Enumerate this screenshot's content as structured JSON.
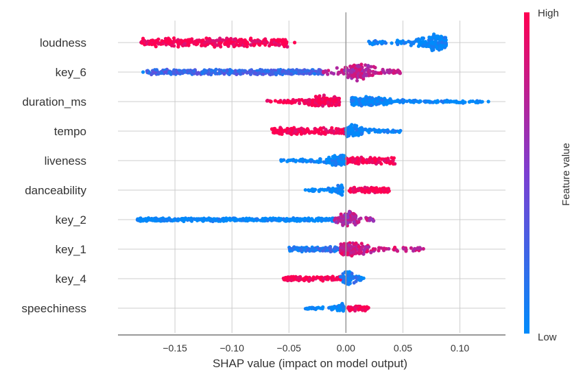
{
  "chart_data": {
    "type": "scatter",
    "subtype": "shap-beeswarm",
    "title": "",
    "xlabel": "SHAP value (impact on model output)",
    "ylabel": "",
    "xlim": [
      -0.2,
      0.14
    ],
    "xticks": [
      -0.15,
      -0.1,
      -0.05,
      0.0,
      0.05,
      0.1
    ],
    "xtick_labels": [
      "−0.15",
      "−0.10",
      "−0.05",
      "0.00",
      "0.05",
      "0.10"
    ],
    "grid": {
      "vertical": true,
      "horizontal": true
    },
    "zero_line": 0.0,
    "colorbar": {
      "title": "Feature value",
      "high_label": "High",
      "low_label": "Low",
      "high_color": "#ff0051",
      "mid_color": "#7c3fd1",
      "low_color": "#008bfb"
    },
    "features": [
      {
        "name": "loudness",
        "segments": [
          {
            "x0": -0.18,
            "x1": -0.05,
            "c": 1.0,
            "w": 0.9
          },
          {
            "x0": 0.02,
            "x1": 0.088,
            "c": 0.0,
            "w": 1.0,
            "peak": 0.08
          }
        ],
        "outliers": [
          {
            "x": -0.045,
            "c": 1.0
          }
        ]
      },
      {
        "name": "key_6",
        "segments": [
          {
            "x0": -0.175,
            "x1": -0.02,
            "c": 0.25,
            "w": 0.55
          },
          {
            "x0": -0.02,
            "x1": 0.05,
            "c": 0.75,
            "w": 1.0,
            "peak": 0.01
          }
        ],
        "outliers": [
          {
            "x": -0.178,
            "c": 0.0
          }
        ]
      },
      {
        "name": "duration_ms",
        "segments": [
          {
            "x0": -0.07,
            "x1": -0.005,
            "c": 1.0,
            "w": 0.75,
            "peak": -0.02
          },
          {
            "x0": 0.005,
            "x1": 0.12,
            "c": 0.0,
            "w": 0.6,
            "peak": 0.015
          }
        ],
        "outliers": [
          {
            "x": 0.125,
            "c": 0.0
          }
        ]
      },
      {
        "name": "tempo",
        "segments": [
          {
            "x0": -0.065,
            "x1": 0.0,
            "c": 1.0,
            "w": 0.7
          },
          {
            "x0": 0.0,
            "x1": 0.048,
            "c": 0.0,
            "w": 0.75,
            "peak": 0.005
          }
        ],
        "outliers": []
      },
      {
        "name": "liveness",
        "segments": [
          {
            "x0": -0.057,
            "x1": 0.0,
            "c": 0.0,
            "w": 0.7,
            "peak": -0.005
          },
          {
            "x0": 0.0,
            "x1": 0.043,
            "c": 1.0,
            "w": 0.7
          }
        ],
        "outliers": []
      },
      {
        "name": "danceability",
        "segments": [
          {
            "x0": -0.037,
            "x1": -0.003,
            "c": 0.0,
            "w": 0.65,
            "peak": -0.003
          },
          {
            "x0": 0.003,
            "x1": 0.038,
            "c": 1.0,
            "w": 0.6
          }
        ],
        "outliers": []
      },
      {
        "name": "key_2",
        "segments": [
          {
            "x0": -0.183,
            "x1": -0.01,
            "c": 0.0,
            "w": 0.35
          },
          {
            "x0": -0.01,
            "x1": 0.025,
            "c": 0.7,
            "w": 1.0,
            "peak": 0.003
          }
        ],
        "outliers": []
      },
      {
        "name": "key_1",
        "segments": [
          {
            "x0": -0.05,
            "x1": 0.0,
            "c": 0.15,
            "w": 0.5
          },
          {
            "x0": -0.005,
            "x1": 0.068,
            "c": 0.8,
            "w": 0.95,
            "peak": 0.003
          }
        ],
        "outliers": []
      },
      {
        "name": "key_4",
        "segments": [
          {
            "x0": -0.055,
            "x1": 0.0,
            "c": 1.0,
            "w": 0.5
          },
          {
            "x0": -0.005,
            "x1": 0.016,
            "c": 0.1,
            "w": 1.0,
            "peak": 0.002
          }
        ],
        "outliers": []
      },
      {
        "name": "speechiness",
        "segments": [
          {
            "x0": -0.039,
            "x1": -0.002,
            "c": 0.0,
            "w": 0.55,
            "peak": -0.002
          },
          {
            "x0": 0.002,
            "x1": 0.02,
            "c": 1.0,
            "w": 0.55
          }
        ],
        "outliers": []
      }
    ]
  }
}
